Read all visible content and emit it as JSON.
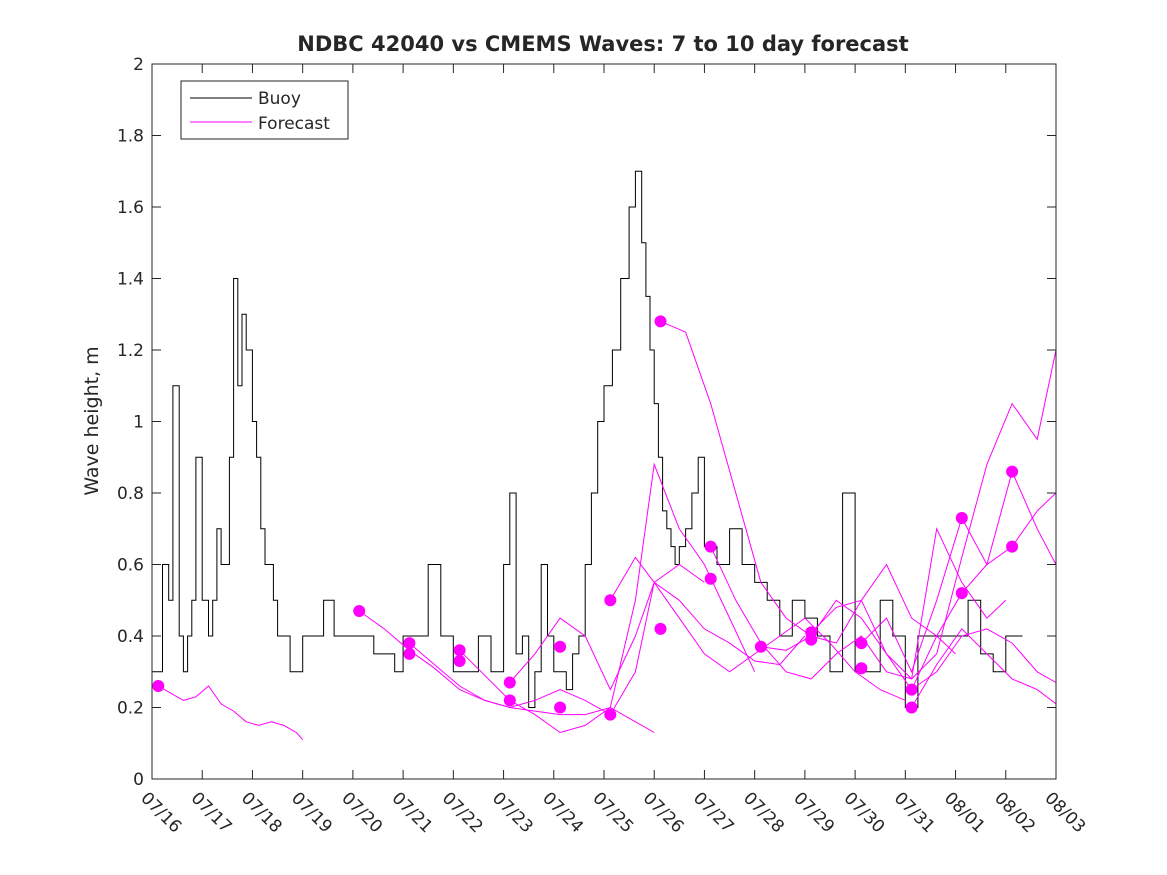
{
  "chart_data": {
    "type": "line",
    "title": "NDBC 42040 vs CMEMS Waves: 7 to 10 day forecast",
    "xlabel": "",
    "ylabel": "Wave height, m",
    "xlim": [
      "07/16",
      "08/03"
    ],
    "ylim": [
      0,
      2
    ],
    "x_tick_labels": [
      "07/16",
      "07/17",
      "07/18",
      "07/19",
      "07/20",
      "07/21",
      "07/22",
      "07/23",
      "07/24",
      "07/25",
      "07/26",
      "07/27",
      "07/28",
      "07/29",
      "07/30",
      "07/31",
      "08/01",
      "08/02",
      "08/03"
    ],
    "y_ticks": [
      0,
      0.2,
      0.4,
      0.6,
      0.8,
      1,
      1.2,
      1.4,
      1.6,
      1.8,
      2
    ],
    "y_tick_labels": [
      "0",
      "0.2",
      "0.4",
      "0.6",
      "0.8",
      "1",
      "1.2",
      "1.4",
      "1.6",
      "1.8",
      "2"
    ],
    "grid": false,
    "legend": {
      "position": "top-left",
      "entries": [
        {
          "label": "Buoy",
          "color": "#000000"
        },
        {
          "label": "Forecast",
          "color": "#ff00ff"
        }
      ]
    },
    "colors": {
      "buoy": "#000000",
      "forecast": "#ff00ff",
      "axes": "#262626",
      "background": "#ffffff"
    },
    "series": [
      {
        "name": "Buoy",
        "color": "#000000",
        "x": [
          "07/16",
          "07/16 05:00",
          "07/16 08:00",
          "07/16 10:00",
          "07/16 13:00",
          "07/16 15:00",
          "07/16 17:00",
          "07/16 19:00",
          "07/16 21:00",
          "07/17",
          "07/17 03:00",
          "07/17 05:00",
          "07/17 07:00",
          "07/17 09:00",
          "07/17 11:00",
          "07/17 13:00",
          "07/17 15:00",
          "07/17 17:00",
          "07/17 19:00",
          "07/17 21:00",
          "07/18",
          "07/18 02:00",
          "07/18 04:00",
          "07/18 06:00",
          "07/18 08:00",
          "07/18 10:00",
          "07/18 12:00",
          "07/18 15:00",
          "07/18 18:00",
          "07/18 21:00",
          "07/19",
          "07/19 05:00",
          "07/19 10:00",
          "07/19 15:00",
          "07/19 20:00",
          "07/20",
          "07/20 10:00",
          "07/20 20:00",
          "07/21",
          "07/21 12:00",
          "07/21 18:00",
          "07/22",
          "07/22 06:00",
          "07/22 12:00",
          "07/22 18:00",
          "07/23",
          "07/23 03:00",
          "07/23 06:00",
          "07/23 09:00",
          "07/23 12:00",
          "07/23 15:00",
          "07/23 18:00",
          "07/23 21:00",
          "07/24",
          "07/24 03:00",
          "07/24 06:00",
          "07/24 09:00",
          "07/24 12:00",
          "07/24 15:00",
          "07/24 18:00",
          "07/24 21:00",
          "07/25",
          "07/25 04:00",
          "07/25 08:00",
          "07/25 12:00",
          "07/25 15:00",
          "07/25 18:00",
          "07/25 20:00",
          "07/25 22:00",
          "07/26",
          "07/26 02:00",
          "07/26 04:00",
          "07/26 06:00",
          "07/26 08:00",
          "07/26 10:00",
          "07/26 12:00",
          "07/26 15:00",
          "07/26 18:00",
          "07/26 21:00",
          "07/27",
          "07/27 06:00",
          "07/27 12:00",
          "07/27 18:00",
          "07/28",
          "07/28 06:00",
          "07/28 12:00",
          "07/28 18:00",
          "07/29",
          "07/29 06:00",
          "07/29 12:00",
          "07/29 18:00",
          "07/30",
          "07/30 06:00",
          "07/30 12:00",
          "07/30 18:00",
          "07/31",
          "07/31 06:00",
          "07/31 12:00",
          "07/31 18:00",
          "08/01",
          "08/01 06:00",
          "08/01 12:00",
          "08/01 18:00",
          "08/02",
          "08/02 06:00",
          "08/02 08:00"
        ],
        "y": [
          0.3,
          0.6,
          0.5,
          1.1,
          0.4,
          0.3,
          0.4,
          0.5,
          0.9,
          0.5,
          0.4,
          0.5,
          0.7,
          0.6,
          0.6,
          0.9,
          1.4,
          1.1,
          1.3,
          1.2,
          1.0,
          0.9,
          0.7,
          0.6,
          0.6,
          0.5,
          0.4,
          0.4,
          0.3,
          0.3,
          0.4,
          0.4,
          0.5,
          0.4,
          0.4,
          0.4,
          0.35,
          0.3,
          0.4,
          0.6,
          0.4,
          0.3,
          0.3,
          0.4,
          0.3,
          0.6,
          0.8,
          0.35,
          0.4,
          0.2,
          0.3,
          0.6,
          0.4,
          0.3,
          0.3,
          0.25,
          0.35,
          0.4,
          0.6,
          0.8,
          1.0,
          1.1,
          1.2,
          1.4,
          1.6,
          1.7,
          1.5,
          1.35,
          1.2,
          1.05,
          0.9,
          0.75,
          0.7,
          0.65,
          0.6,
          0.65,
          0.7,
          0.8,
          0.9,
          0.65,
          0.6,
          0.7,
          0.6,
          0.55,
          0.5,
          0.4,
          0.5,
          0.45,
          0.4,
          0.3,
          0.8,
          0.3,
          0.3,
          0.5,
          0.4,
          0.2,
          0.4,
          0.4,
          0.4,
          0.4,
          0.5,
          0.35,
          0.3,
          0.4,
          0.4,
          0.4
        ]
      }
    ],
    "forecast_runs": [
      {
        "name": "",
        "x": [
          "07/16 03:00",
          "07/16 09:00",
          "07/16 15:00",
          "07/16 21:00",
          "07/17 03:00",
          "07/17 09:00",
          "07/17 15:00",
          "07/17 21:00",
          "07/18 03:00",
          "07/18 09:00",
          "07/18 15:00",
          "07/18 21:00",
          "07/19"
        ],
        "y": [
          0.26,
          0.24,
          0.22,
          0.23,
          0.26,
          0.21,
          0.19,
          0.16,
          0.15,
          0.16,
          0.15,
          0.13,
          0.11
        ]
      },
      {
        "name": "",
        "x": [
          "07/20 03:00",
          "07/20 15:00",
          "07/21 03:00",
          "07/21 15:00",
          "07/22 03:00",
          "07/22 15:00",
          "07/23 03:00",
          "07/23 15:00",
          "07/24 03:00",
          "07/24 15:00",
          "07/25 03:00",
          "07/25 15:00",
          "07/26"
        ],
        "y": [
          0.47,
          0.42,
          0.36,
          0.31,
          0.25,
          0.22,
          0.2,
          0.19,
          0.18,
          0.18,
          0.2,
          0.16,
          0.13
        ]
      },
      {
        "name": "",
        "x": [
          "07/21 03:00",
          "07/21 15:00",
          "07/22 03:00",
          "07/22 15:00",
          "07/23 03:00",
          "07/23 15:00",
          "07/24 03:00",
          "07/24 15:00",
          "07/25 03:00",
          "07/25 15:00",
          "07/26",
          "07/26 12:00",
          "07/27"
        ],
        "y": [
          0.38,
          0.32,
          0.26,
          0.22,
          0.2,
          0.22,
          0.25,
          0.22,
          0.18,
          0.3,
          0.55,
          0.6,
          0.55
        ]
      },
      {
        "name": "",
        "x": [
          "07/22 03:00",
          "07/22 15:00",
          "07/23 03:00",
          "07/23 15:00",
          "07/24 03:00",
          "07/24 15:00",
          "07/25 03:00",
          "07/25 15:00",
          "07/26",
          "07/26 12:00",
          "07/27",
          "07/27 12:00",
          "07/28"
        ],
        "y": [
          0.36,
          0.29,
          0.22,
          0.18,
          0.13,
          0.15,
          0.2,
          0.5,
          0.88,
          0.7,
          0.6,
          0.45,
          0.3
        ]
      },
      {
        "name": "",
        "x": [
          "07/23 03:00",
          "07/23 15:00",
          "07/24 03:00",
          "07/24 15:00",
          "07/25 03:00",
          "07/25 15:00",
          "07/26",
          "07/26 12:00",
          "07/27",
          "07/27 12:00",
          "07/28",
          "07/28 12:00",
          "07/29"
        ],
        "y": [
          0.27,
          0.35,
          0.45,
          0.4,
          0.25,
          0.4,
          0.55,
          0.5,
          0.42,
          0.38,
          0.33,
          0.32,
          0.4
        ]
      },
      {
        "name": "",
        "x": [
          "07/25 03:00",
          "07/25 15:00",
          "07/26",
          "07/26 12:00",
          "07/27",
          "07/27 12:00",
          "07/28",
          "07/28 12:00",
          "07/29",
          "07/29 12:00",
          "07/30",
          "07/30 12:00",
          "07/31"
        ],
        "y": [
          0.5,
          0.62,
          0.55,
          0.45,
          0.35,
          0.3,
          0.35,
          0.4,
          0.45,
          0.38,
          0.3,
          0.25,
          0.22
        ]
      },
      {
        "name": "",
        "x": [
          "07/26 03:00",
          "07/26 15:00",
          "07/27 03:00",
          "07/27 15:00",
          "07/28 03:00",
          "07/28 15:00",
          "07/29 03:00",
          "07/29 15:00",
          "07/30 03:00",
          "07/30 15:00",
          "07/31 03:00",
          "07/31 15:00",
          "08/01"
        ],
        "y": [
          1.28,
          1.25,
          1.05,
          0.8,
          0.55,
          0.45,
          0.4,
          0.38,
          0.5,
          0.6,
          0.45,
          0.4,
          0.35
        ]
      },
      {
        "name": "",
        "x": [
          "07/27 03:00",
          "07/27 15:00",
          "07/28 03:00",
          "07/28 15:00",
          "07/29 03:00",
          "07/29 15:00",
          "07/30 03:00",
          "07/30 15:00",
          "07/31 03:00",
          "07/31 15:00",
          "08/01 03:00",
          "08/01 15:00",
          "08/02"
        ],
        "y": [
          0.65,
          0.5,
          0.38,
          0.3,
          0.28,
          0.35,
          0.4,
          0.3,
          0.28,
          0.7,
          0.55,
          0.45,
          0.5
        ]
      },
      {
        "name": "",
        "x": [
          "07/28 03:00",
          "07/28 15:00",
          "07/29 03:00",
          "07/29 15:00",
          "07/30 03:00",
          "07/30 15:00",
          "07/31 03:00",
          "07/31 15:00",
          "08/01 03:00",
          "08/01 15:00",
          "08/02 03:00",
          "08/02 15:00",
          "08/03"
        ],
        "y": [
          0.37,
          0.36,
          0.4,
          0.5,
          0.45,
          0.35,
          0.25,
          0.3,
          0.4,
          0.42,
          0.38,
          0.3,
          0.27
        ]
      },
      {
        "name": "",
        "x": [
          "07/29 03:00",
          "07/29 15:00",
          "07/30 03:00",
          "07/30 15:00",
          "07/31 03:00",
          "07/31 15:00",
          "08/01 03:00",
          "08/01 15:00",
          "08/02 03:00",
          "08/02 15:00",
          "08/03"
        ],
        "y": [
          0.41,
          0.48,
          0.5,
          0.35,
          0.28,
          0.35,
          0.62,
          0.88,
          1.05,
          0.95,
          1.2
        ]
      },
      {
        "name": "",
        "x": [
          "07/30 03:00",
          "07/30 15:00",
          "07/31 03:00",
          "07/31 15:00",
          "08/01 03:00",
          "08/01 15:00",
          "08/02 03:00",
          "08/02 15:00",
          "08/03"
        ],
        "y": [
          0.38,
          0.45,
          0.3,
          0.5,
          0.73,
          0.6,
          0.65,
          0.75,
          0.8
        ]
      },
      {
        "name": "",
        "x": [
          "07/31 03:00",
          "07/31 15:00",
          "08/01 03:00",
          "08/01 15:00",
          "08/02 03:00",
          "08/02 15:00",
          "08/03"
        ],
        "y": [
          0.25,
          0.4,
          0.52,
          0.6,
          0.86,
          0.7,
          0.6
        ]
      },
      {
        "name": "",
        "x": [
          "07/31 03:00",
          "07/31 15:00",
          "08/01 03:00",
          "08/01 15:00",
          "08/02 03:00",
          "08/02 15:00",
          "08/03"
        ],
        "y": [
          0.2,
          0.32,
          0.42,
          0.35,
          0.28,
          0.25,
          0.21
        ]
      }
    ],
    "forecast_markers": {
      "x": [
        "07/16 03:00",
        "07/20 03:00",
        "07/21 03:00",
        "07/21 03:00",
        "07/22 03:00",
        "07/22 03:00",
        "07/23 03:00",
        "07/23 03:00",
        "07/24 03:00",
        "07/24 03:00",
        "07/25 03:00",
        "07/25 03:00",
        "07/26 03:00",
        "07/26 03:00",
        "07/27 03:00",
        "07/27 03:00",
        "07/28 03:00",
        "07/29 03:00",
        "07/29 03:00",
        "07/30 03:00",
        "07/30 03:00",
        "07/31 03:00",
        "07/31 03:00",
        "08/01 03:00",
        "08/01 03:00",
        "08/02 03:00",
        "08/02 03:00"
      ],
      "y": [
        0.26,
        0.47,
        0.38,
        0.35,
        0.36,
        0.33,
        0.27,
        0.22,
        0.37,
        0.2,
        0.5,
        0.18,
        1.28,
        0.42,
        0.65,
        0.56,
        0.37,
        0.41,
        0.39,
        0.38,
        0.31,
        0.25,
        0.2,
        0.73,
        0.52,
        0.86,
        0.65
      ]
    }
  }
}
